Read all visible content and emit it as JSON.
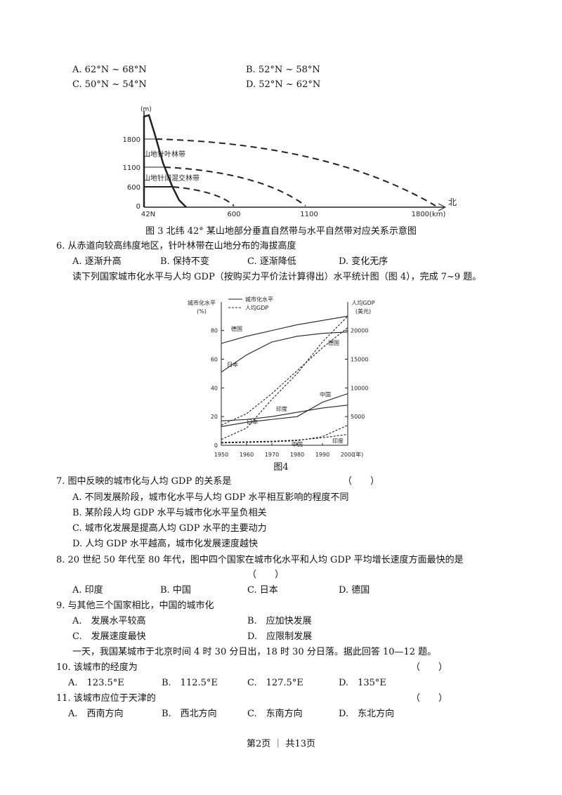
{
  "q5_options": [
    "A. 62°N ~ 68°N",
    "B. 52°N ~ 58°N",
    "C. 50°N ~ 54°N",
    "D. 52°N ~ 62°N"
  ],
  "figure3": {
    "y_unit": "(m)",
    "y_labels": [
      "1800",
      "1100",
      "600",
      "0"
    ],
    "x_labels": [
      "42N",
      "600",
      "1100",
      "1800(km)"
    ],
    "direction": "北",
    "bands": [
      "山地针叶林带",
      "山地针阔混交林带"
    ],
    "caption": "图 3 北纬 42° 某山地部分垂直自然带与水平自然带对应关系示意图"
  },
  "questions": [
    {
      "stem": "6. 从赤道向较高纬度地区，针叶林带在山地分布的海拔高度",
      "options": [
        "A. 逐渐升高",
        "B. 保持不变",
        "C. 逐渐降低",
        "D. 变化无序"
      ]
    },
    {
      "stem": "7. 图中反映的城市化与人均 GDP 的关系是",
      "blank": "（　　）",
      "options": [
        "A. 不同发展阶段，城市化水平与人均 GDP 水平相互影响的程度不同",
        "B. 某阶段人均 GDP 水平与城市化水平呈负相关",
        "C. 城市化发展是提高人均 GDP 水平的主要动力",
        "D. 人均 GDP 水平越高，城市化发展速度越快"
      ]
    },
    {
      "stem": "8. 20 世纪 50 年代至 80 年代，图中四个国家在城市化水平和人均 GDP 平均增长速度方面最快的是",
      "blank": "（　　）",
      "options": [
        "A. 印度",
        "B. 中国",
        "C. 日本",
        "D. 德国"
      ]
    },
    {
      "stem": "9. 与其他三个国家相比，中国的城市化",
      "options": [
        "A.　发展水平较高",
        "B.　应加快发展",
        "C.　发展速度最快",
        "D.　应限制发展"
      ]
    },
    {
      "stem": "10. 该城市的经度为",
      "blank": "（　　）",
      "options": [
        "A.　123.5°E",
        "B.　112.5°E",
        "C.　127.5°E",
        "D.　135°E"
      ]
    },
    {
      "stem": "11. 该城市应位于天津的",
      "blank": "（　　）",
      "options": [
        "A.　西南方向",
        "B.　西北方向",
        "C.　东南方向",
        "D.　东北方向"
      ]
    }
  ],
  "instructions": [
    "读下列国家城市化水平与人均 GDP（按购买力平价法计算得出）水平统计图（图 4），完成 7~9 题。",
    "一天，我国某城市于北京时间 4 时 30 分日出，18 时 30 分日落。据此回答 10—12 题。"
  ],
  "chart_data": {
    "type": "line",
    "caption": "图4",
    "ylabel": "城市化水平",
    "yunit": "(%)",
    "y2label": "人均GDP",
    "y2unit": "(美元)",
    "xlabel": "(年)",
    "x": [
      1950,
      1960,
      1970,
      1980,
      1990,
      2000
    ],
    "xlim": [
      1950,
      2000
    ],
    "xticks": [
      1950,
      1960,
      1970,
      1980,
      1990,
      2000
    ],
    "ylim": [
      0,
      95
    ],
    "yticks": [
      0,
      20,
      40,
      60,
      80
    ],
    "y2lim": [
      0,
      23750
    ],
    "y2ticks": [
      5000,
      10000,
      15000,
      20000
    ],
    "color": "#222",
    "groups": [
      {
        "name": "城市化水平",
        "axis": "y",
        "dashed": false,
        "series": [
          {
            "name": "德国",
            "values": [
              71,
              76,
              80,
              84,
              87,
              90
            ]
          },
          {
            "name": "日本",
            "values": [
              51,
              63,
              72,
              76,
              78,
              79
            ]
          },
          {
            "name": "印度",
            "values": [
              17,
              18,
              20,
              23,
              26,
              28
            ]
          },
          {
            "name": "中国",
            "values": [
              13,
              16,
              18,
              20,
              30,
              36
            ]
          }
        ]
      },
      {
        "name": "人均GDP",
        "axis": "y2",
        "dashed": true,
        "series": [
          {
            "name": "德国",
            "values": [
              3500,
              5500,
              9000,
              13000,
              17000,
              20500
            ]
          },
          {
            "name": "日本",
            "values": [
              1000,
              3000,
              8000,
              12500,
              18000,
              22500
            ]
          },
          {
            "name": "印度",
            "values": [
              500,
              600,
              700,
              900,
              1300,
              1900
            ]
          },
          {
            "name": "中国",
            "values": [
              400,
              500,
              600,
              800,
              1500,
              3500
            ]
          }
        ]
      }
    ]
  },
  "footer": "第2页 ｜ 共13页"
}
